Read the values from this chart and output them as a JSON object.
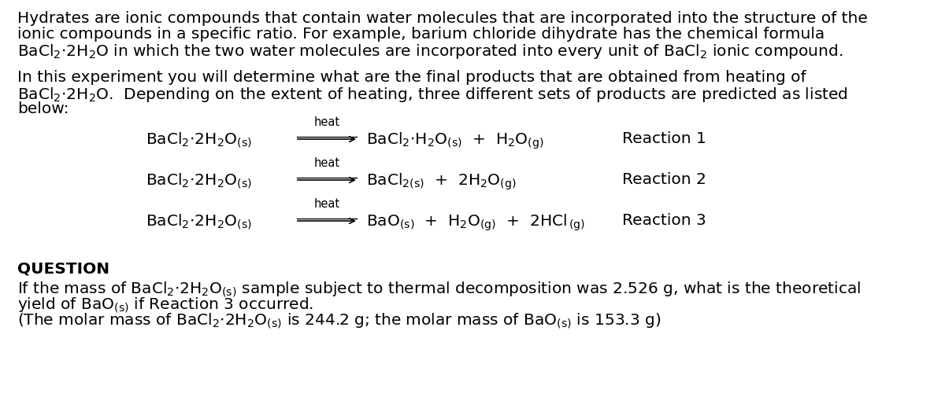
{
  "bg_color": "#ffffff",
  "figsize": [
    12.0,
    5.19
  ],
  "dpi": 100,
  "para1_line1": "Hydrates are ionic compounds that contain water molecules that are incorporated into the structure of the",
  "para1_line2": "ionic compounds in a specific ratio. For example, barium chloride dihydrate has the chemical formula",
  "para2_line1": "In this experiment you will determine what are the final products that are obtained from heating of",
  "para2_line2": "BaCl·2H₂O.  Depending on the extent of heating, three different sets of products are predicted as listed",
  "para2_line3": "below:",
  "question_header": "QUESTION",
  "font_size_body": 14.5,
  "font_size_eq": 14.5,
  "font_size_heat": 10.5,
  "font_family": "Arial"
}
